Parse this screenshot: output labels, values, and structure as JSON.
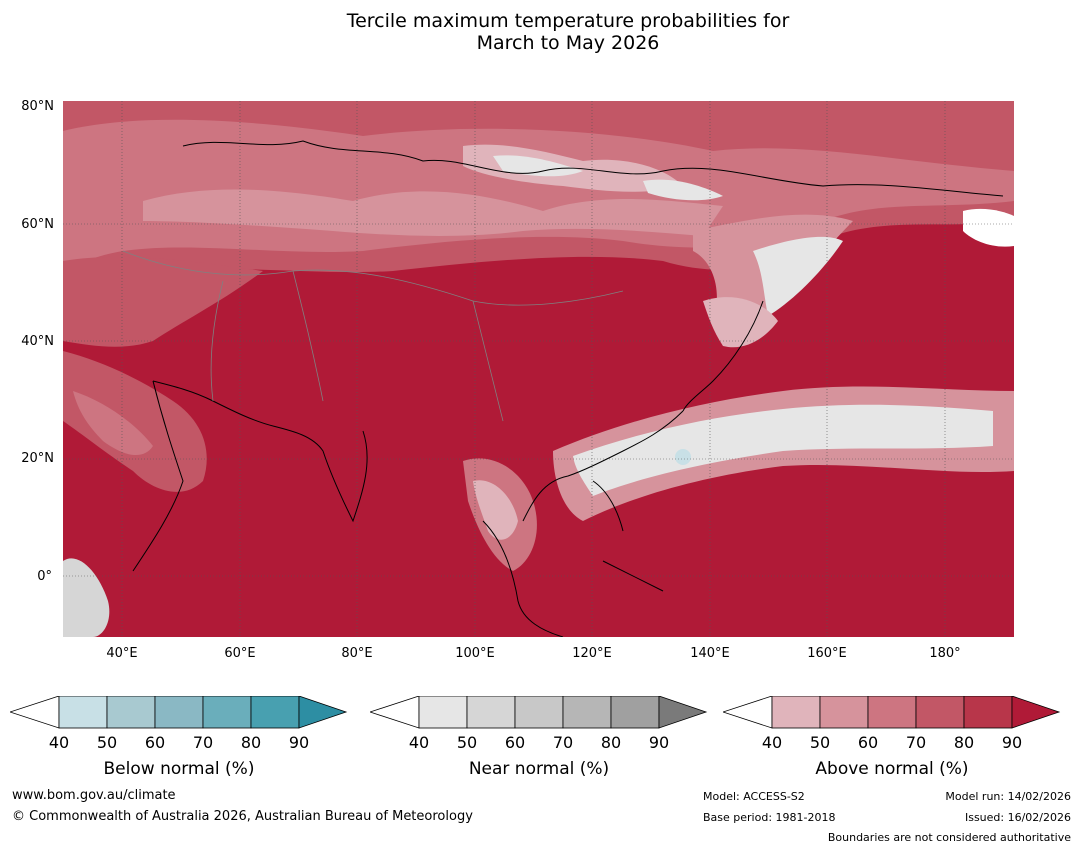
{
  "title_line1": "Tercile maximum temperature probabilities for",
  "title_line2": "March to May 2026",
  "lat_labels": [
    "80°N",
    "60°N",
    "40°N",
    "20°N",
    "0°"
  ],
  "lon_labels": [
    "40°E",
    "60°E",
    "80°E",
    "100°E",
    "120°E",
    "140°E",
    "160°E",
    "180°"
  ],
  "colorbars": [
    {
      "label": "Below normal (%)",
      "ticks": [
        "40",
        "50",
        "60",
        "70",
        "80",
        "90"
      ],
      "colors": [
        "#ffffff",
        "#c8e0e6",
        "#a8c9d0",
        "#8ab8c4",
        "#6aaebb",
        "#48a0b0",
        "#2d8ea3"
      ]
    },
    {
      "label": "Near normal (%)",
      "ticks": [
        "40",
        "50",
        "60",
        "70",
        "80",
        "90"
      ],
      "colors": [
        "#ffffff",
        "#e6e6e6",
        "#d6d6d6",
        "#c8c8c8",
        "#b6b6b6",
        "#a0a0a0",
        "#7a7a7a"
      ]
    },
    {
      "label": "Above normal (%)",
      "ticks": [
        "40",
        "50",
        "60",
        "70",
        "80",
        "90"
      ],
      "colors": [
        "#ffffff",
        "#e0b4bb",
        "#d6939c",
        "#cd7581",
        "#c25766",
        "#b8364a",
        "#b01a37"
      ]
    }
  ],
  "footer": {
    "website": "www.bom.gov.au/climate",
    "copyright": "© Commonwealth of Australia 2026, Australian Bureau of Meteorology",
    "model": "Model: ACCESS-S2",
    "base_period": "Base period: 1981-2018",
    "model_run": "Model run: 14/02/2026",
    "issued": "Issued: 16/02/2026",
    "boundaries": "Boundaries are not considered authoritative"
  },
  "map_colors": {
    "above_90": "#b01a37",
    "above_80": "#b8364a",
    "above_70": "#c25766",
    "above_60": "#cd7581",
    "above_50": "#d6939c",
    "above_40": "#e0b4bb",
    "near_50": "#e6e6e6",
    "below_50": "#c8e0e6",
    "coastline": "#000000",
    "borders": "#808080"
  }
}
